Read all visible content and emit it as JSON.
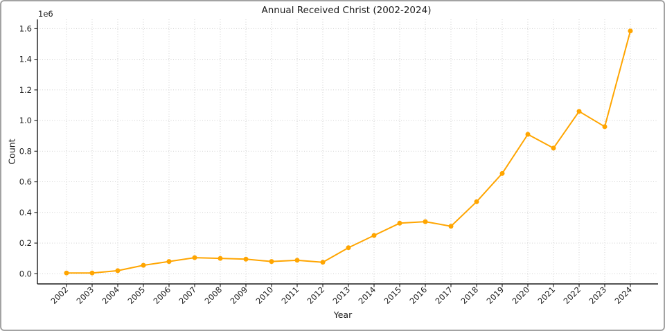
{
  "frame": {
    "border_color": "#a3a3a3",
    "background_color": "#ffffff"
  },
  "chart_data": {
    "type": "line",
    "title": "Annual Received Christ (2002-2024)",
    "xlabel": "Year",
    "ylabel": "Count",
    "y_offset_label": "1e6",
    "legend": "none",
    "grid": true,
    "grid_style": "dotted",
    "line_color": "#FFA500",
    "marker": "circle",
    "grid_color": "#cccccc",
    "axis_color": "#1a1a1a",
    "categories": [
      "2002",
      "2003",
      "2004",
      "2005",
      "2006",
      "2007",
      "2008",
      "2009",
      "2010",
      "2011",
      "2012",
      "2013",
      "2014",
      "2015",
      "2016",
      "2017",
      "2018",
      "2019",
      "2020",
      "2021",
      "2022",
      "2023",
      "2024"
    ],
    "values": [
      5000,
      5000,
      20000,
      55000,
      80000,
      105000,
      100000,
      95000,
      80000,
      88000,
      75000,
      170000,
      250000,
      330000,
      340000,
      310000,
      470000,
      655000,
      910000,
      820000,
      1060000,
      960000,
      1585000
    ],
    "y_ticks": [
      0,
      200000,
      400000,
      600000,
      800000,
      1000000,
      1200000,
      1400000,
      1600000
    ],
    "y_tick_labels": [
      "0.0",
      "0.2",
      "0.4",
      "0.6",
      "0.8",
      "1.0",
      "1.2",
      "1.4",
      "1.6"
    ],
    "ylim": [
      -70000,
      1660000
    ],
    "x_tick_rotation_deg": 45
  }
}
